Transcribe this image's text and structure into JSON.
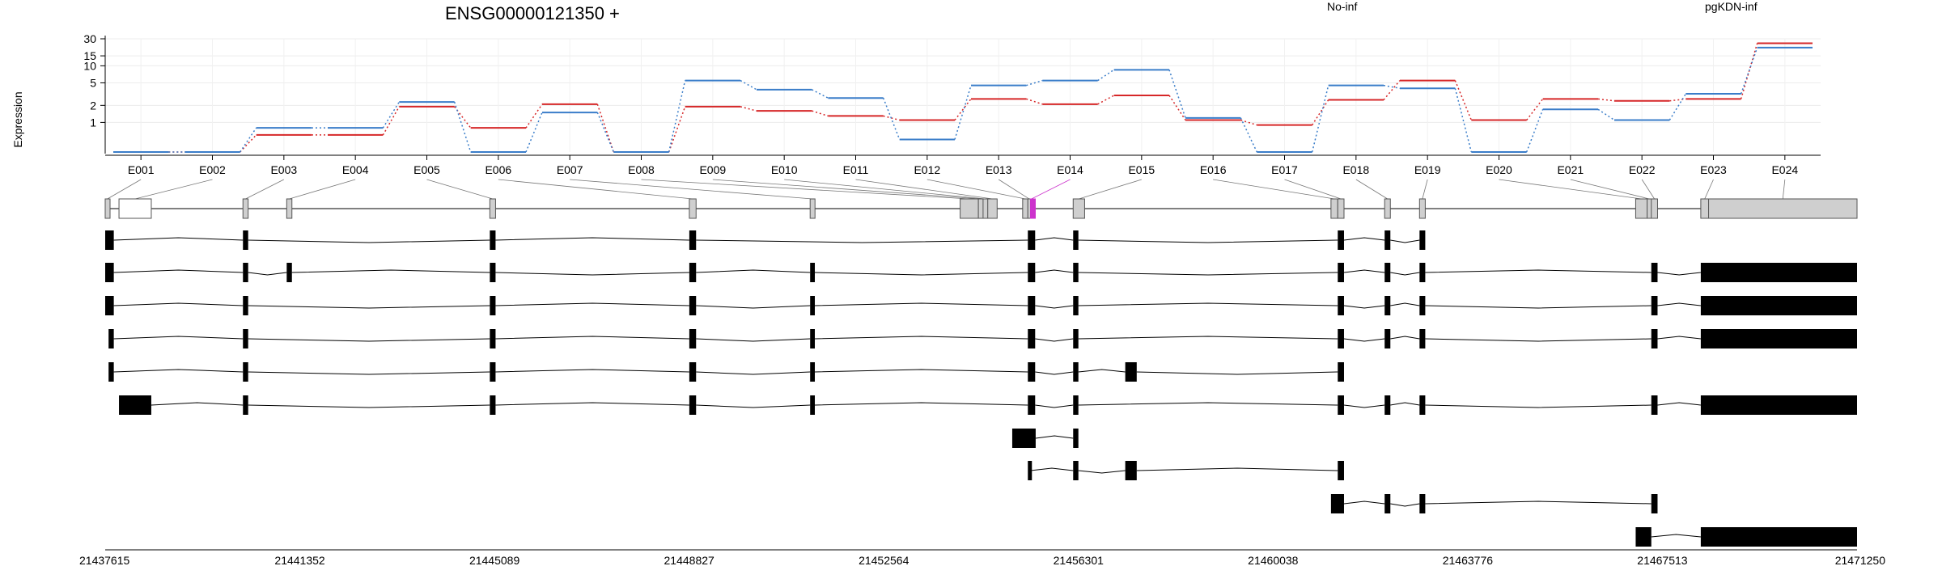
{
  "chart_data": {
    "type": "line",
    "title": "ENSG00000121350 +",
    "ylabel": "Expression",
    "y_scale": "log",
    "y_ticks": [
      30,
      15,
      10,
      5,
      2,
      1
    ],
    "grid": true,
    "legend": [
      "No-inf",
      "pgKDN-inf"
    ],
    "colors": {
      "No-inf": "#d62728",
      "pgKDN-inf": "#3a7dc9"
    },
    "categories": [
      "E001",
      "E002",
      "E003",
      "E004",
      "E005",
      "E006",
      "E007",
      "E008",
      "E009",
      "E010",
      "E011",
      "E012",
      "E013",
      "E014",
      "E015",
      "E016",
      "E017",
      "E018",
      "E019",
      "E020",
      "E021",
      "E022",
      "E023",
      "E024"
    ],
    "series": [
      {
        "name": "No-inf",
        "values": [
          0.3,
          0.3,
          0.6,
          0.6,
          1.9,
          0.8,
          2.1,
          0.3,
          1.9,
          1.6,
          1.3,
          1.1,
          2.6,
          2.1,
          3.0,
          1.1,
          0.9,
          2.5,
          5.5,
          1.1,
          2.6,
          2.4,
          2.6,
          25.0
        ]
      },
      {
        "name": "pgKDN-inf",
        "values": [
          0.3,
          0.3,
          0.8,
          0.8,
          2.3,
          0.3,
          1.5,
          0.3,
          5.5,
          3.8,
          2.7,
          0.5,
          4.5,
          5.5,
          8.5,
          1.2,
          0.3,
          4.5,
          4.0,
          0.3,
          1.7,
          1.1,
          3.2,
          21.0
        ]
      }
    ],
    "genomic_axis_ticks": [
      "21437615",
      "21441352",
      "21445089",
      "21448827",
      "21452564",
      "21456301",
      "21460038",
      "21463776",
      "21467513",
      "21471250"
    ],
    "highlighted_exon": "E014",
    "highlight_color": "#cc33cc"
  }
}
